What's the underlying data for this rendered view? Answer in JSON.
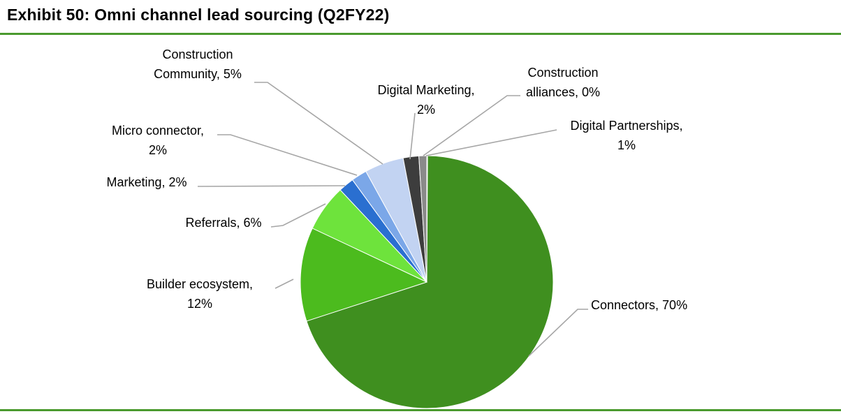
{
  "title": "Exhibit 50: Omni channel lead sourcing (Q2FY22)",
  "chart_data": {
    "type": "pie",
    "title": "Exhibit 50: Omni channel lead sourcing (Q2FY22)",
    "unit": "%",
    "slices": [
      {
        "label": "Connectors",
        "value": 70,
        "label_lines": [
          "Connectors, 70%"
        ],
        "color": "#3f8f1f"
      },
      {
        "label": "Builder ecosystem",
        "value": 12,
        "label_lines": [
          "Builder ecosystem,",
          "12%"
        ],
        "color": "#4cbb1e"
      },
      {
        "label": "Referrals",
        "value": 6,
        "label_lines": [
          "Referrals, 6%"
        ],
        "color": "#6ee33c"
      },
      {
        "label": "Marketing",
        "value": 2,
        "label_lines": [
          "Marketing, 2%"
        ],
        "color": "#2a6fd0"
      },
      {
        "label": "Micro connector",
        "value": 2,
        "label_lines": [
          "Micro connector,",
          "2%"
        ],
        "color": "#7ba7e8"
      },
      {
        "label": "Construction Community",
        "value": 5,
        "label_lines": [
          "Construction",
          "Community, 5%"
        ],
        "color": "#c2d3f2"
      },
      {
        "label": "Digital Marketing",
        "value": 2,
        "label_lines": [
          "Digital Marketing,",
          "2%"
        ],
        "color": "#3d3d3d"
      },
      {
        "label": "Digital Partnerships",
        "value": 1,
        "label_lines": [
          "Digital Partnerships,",
          "1%"
        ],
        "color": "#8a8a8a"
      },
      {
        "label": "Construction alliances",
        "value": 0,
        "label_lines": [
          "Construction",
          "alliances, 0%"
        ],
        "color": "#b5b5b5"
      }
    ]
  }
}
